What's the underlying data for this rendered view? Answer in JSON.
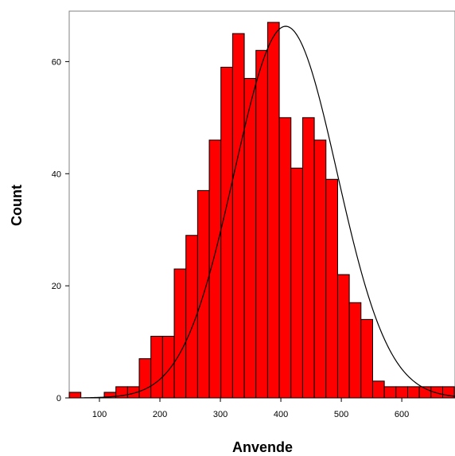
{
  "chart_data": {
    "type": "bar",
    "subtype": "histogram",
    "xlabel": "Anvende",
    "ylabel": "Count",
    "xlim": [
      50,
      688
    ],
    "ylim": [
      0,
      69
    ],
    "grid": false,
    "bar_color": "#ff0000",
    "bar_edge_color": "#000000",
    "curve_color": "#000000",
    "x_ticks": [
      100,
      200,
      300,
      400,
      500,
      600
    ],
    "y_ticks": [
      0,
      20,
      40,
      60
    ],
    "bin_width": 19.3,
    "bins_x": [
      59.65,
      78.95,
      98.25,
      117.55,
      136.85,
      156.15,
      175.45,
      194.75,
      214.05,
      233.35,
      252.65,
      271.95,
      291.25,
      310.55,
      329.85,
      349.15,
      368.45,
      387.75,
      407.05,
      426.35,
      445.65,
      464.95,
      484.25,
      503.55,
      522.85,
      542.15,
      561.45,
      580.75,
      600.05,
      619.35,
      638.65,
      657.95,
      677.25
    ],
    "counts": [
      1,
      0,
      0,
      1,
      2,
      2,
      7,
      11,
      11,
      23,
      29,
      37,
      46,
      59,
      65,
      57,
      62,
      67,
      50,
      41,
      50,
      46,
      39,
      22,
      17,
      14,
      3,
      2,
      2,
      2,
      2,
      2,
      2
    ],
    "normal_curve": {
      "mean": 408,
      "sd": 85,
      "peak": 66.3
    }
  }
}
